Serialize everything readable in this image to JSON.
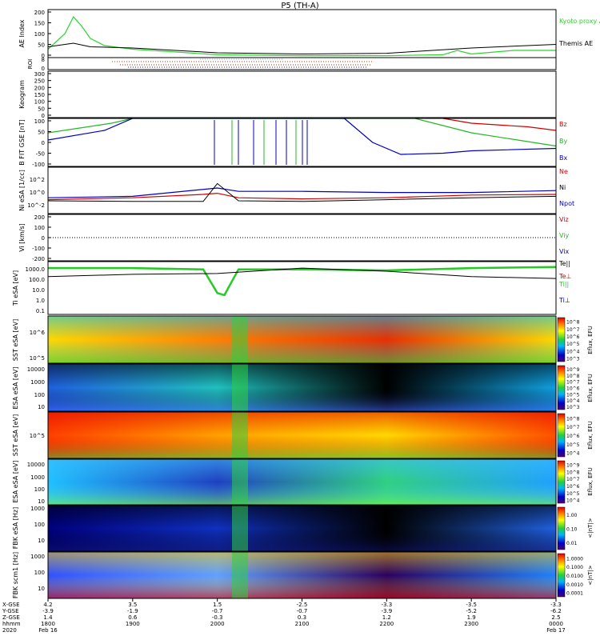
{
  "title": "P5 (TH-A)",
  "colors": {
    "kyoto": "#2fd32f",
    "themis": "#000000",
    "bz": "#d00000",
    "by": "#22b822",
    "bx": "#0000c0",
    "ne": "#d00000",
    "ni": "#0000c0",
    "npot": "#000000",
    "telc": "#000000",
    "tilc": "#22cc22"
  },
  "chart_data": [
    {
      "id": "ae",
      "type": "line",
      "ylabel": "AE Index",
      "ylim": [
        0,
        200
      ],
      "yticks": [
        "200",
        "150",
        "100",
        "50",
        "0"
      ],
      "series": [
        {
          "name": "Kyoto proxy AE",
          "x": [
            "1800",
            "1812",
            "1818",
            "1824",
            "1830",
            "1840",
            "1900",
            "2000",
            "2100",
            "2200",
            "2240",
            "2250",
            "2300",
            "2330",
            "2400"
          ],
          "y": [
            35,
            100,
            170,
            130,
            80,
            50,
            35,
            12,
            8,
            8,
            12,
            30,
            15,
            30,
            30
          ]
        },
        {
          "name": "Themis AE",
          "x": [
            "1800",
            "1818",
            "1830",
            "1900",
            "2000",
            "2100",
            "2200",
            "2300",
            "2400"
          ],
          "y": [
            45,
            60,
            45,
            40,
            20,
            15,
            18,
            40,
            55
          ]
        }
      ]
    },
    {
      "id": "roi",
      "type": "line",
      "ylabel": "ROI",
      "ytick_labels": [
        "8",
        "0"
      ]
    },
    {
      "id": "kesegram",
      "type": "line",
      "ylabel": "Keogram",
      "ylim": [
        0,
        300
      ],
      "yticks": [
        "300",
        "250",
        "200",
        "150",
        "100",
        "50",
        "0"
      ]
    },
    {
      "id": "bfit",
      "type": "line",
      "ylabel": "B FIT GSE [nT]",
      "ylim": [
        -100,
        100
      ],
      "yticks": [
        "100",
        "50",
        "0",
        "-50",
        "-100"
      ],
      "series": [
        {
          "name": "Bz",
          "x": [
            "2240",
            "2300",
            "2340",
            "2400"
          ],
          "y": [
            100,
            80,
            65,
            50
          ]
        },
        {
          "name": "By",
          "x": [
            "1800",
            "1845",
            "1900",
            "2220",
            "2300",
            "2400"
          ],
          "y": [
            40,
            80,
            100,
            100,
            40,
            -15
          ]
        },
        {
          "name": "Bx",
          "x": [
            "1800",
            "1840",
            "1900",
            "2130",
            "2150",
            "2210",
            "2240",
            "2300",
            "2400"
          ],
          "y": [
            10,
            50,
            100,
            100,
            0,
            -50,
            -45,
            -35,
            -25
          ]
        }
      ]
    },
    {
      "id": "ni",
      "type": "line",
      "ylabel": "Ni eSA [1/cc]",
      "yscale": "log",
      "ytick_labels": [
        "10^2",
        "10^0",
        "10^-2"
      ],
      "series": [
        {
          "name": "Ne",
          "x": [
            "1800",
            "1900",
            "1950",
            "2000",
            "2015",
            "2100",
            "2200",
            "2300",
            "2400"
          ],
          "y": [
            0.15,
            0.3,
            1,
            1.5,
            0.3,
            0.2,
            0.3,
            0.8,
            1
          ]
        },
        {
          "name": "Ni",
          "x": [
            "1800",
            "1900",
            "2000",
            "2015",
            "2100",
            "2200",
            "2300",
            "2400"
          ],
          "y": [
            0.3,
            0.5,
            10,
            3,
            3,
            2,
            2,
            4
          ]
        },
        {
          "name": "Npot",
          "x": [
            "1800",
            "1900",
            "1950",
            "2000",
            "2015",
            "2100",
            "2200",
            "2300",
            "2400"
          ],
          "y": [
            0.1,
            0.08,
            0.08,
            50,
            0.1,
            0.08,
            0.15,
            0.3,
            0.5
          ]
        }
      ]
    },
    {
      "id": "vi",
      "type": "line",
      "ylabel": "Vi [km/s]",
      "ylim": [
        -200,
        200
      ],
      "yticks": [
        "200",
        "100",
        "0",
        "-100",
        "-200"
      ],
      "series": [
        {
          "name": "Viz",
          "x": [],
          "y": []
        },
        {
          "name": "Viy",
          "x": [],
          "y": []
        },
        {
          "name": "Vix",
          "x": [],
          "y": []
        }
      ]
    },
    {
      "id": "ti",
      "type": "line",
      "ylabel": "Ti eSA [eV]",
      "yscale": "log",
      "ytick_labels": [
        "1000.0",
        "100.0",
        "10.0",
        "1.0",
        "0.1"
      ],
      "series": [
        {
          "name": "Te||",
          "x": [
            "1800",
            "1900",
            "2000",
            "2100",
            "2200",
            "2300",
            "2400"
          ],
          "y": [
            300,
            500,
            600,
            2000,
            1000,
            300,
            200
          ]
        },
        {
          "name": "Ti||",
          "x": [
            "1800",
            "1900",
            "1950",
            "2000",
            "2005",
            "2015",
            "2100",
            "2200",
            "2300",
            "2400"
          ],
          "y": [
            2000,
            2000,
            1500,
            8,
            5,
            1500,
            1500,
            1200,
            2000,
            2500
          ]
        }
      ]
    },
    {
      "id": "sst_i_e",
      "type": "heatmap",
      "ylabel": "SST eSA [eV]",
      "ytick_labels": [
        "10^6",
        "10^5"
      ],
      "colorbar_label": "Eflux, EFU",
      "colorbar_ticks": [
        "10^8",
        "10^7",
        "10^6",
        "10^5",
        "10^4",
        "10^3"
      ]
    },
    {
      "id": "esa_e",
      "type": "heatmap",
      "ylabel": "ESA eSA [eV]",
      "ytick_labels": [
        "10000",
        "1000",
        "100",
        "10"
      ],
      "colorbar_label": "Eflux, EFU",
      "colorbar_ticks": [
        "10^9",
        "10^8",
        "10^7",
        "10^6",
        "10^5",
        "10^4",
        "10^3"
      ]
    },
    {
      "id": "sst_i",
      "type": "heatmap",
      "ylabel": "SST eSA [eV]",
      "ytick_labels": [
        "10^5"
      ],
      "colorbar_label": "Eflux, EFU",
      "colorbar_ticks": [
        "10^8",
        "10^7",
        "10^6",
        "10^5",
        "10^4"
      ]
    },
    {
      "id": "esa_i",
      "type": "heatmap",
      "ylabel": "ESA eSA [eV]",
      "ytick_labels": [
        "10000",
        "1000",
        "100",
        "10"
      ],
      "colorbar_label": "Eflux, EFU",
      "colorbar_ticks": [
        "10^9",
        "10^8",
        "10^7",
        "10^6",
        "10^5",
        "10^4"
      ]
    },
    {
      "id": "fbk_e",
      "type": "heatmap",
      "ylabel": "FBK eSA [Hz]",
      "ytick_labels": [
        "1000",
        "100",
        "10"
      ],
      "colorbar_label": "<|nT|>",
      "colorbar_ticks": [
        "1.00",
        "0.10",
        "0.01"
      ]
    },
    {
      "id": "fbk_b",
      "type": "heatmap",
      "ylabel": "FBK scm1 [Hz]",
      "ytick_labels": [
        "1000",
        "100",
        "10"
      ],
      "colorbar_label": "<|nT|>",
      "colorbar_ticks": [
        "1.0000",
        "0.1000",
        "0.0100",
        "0.0010",
        "0.0001"
      ]
    }
  ],
  "side_labels": {
    "kyoto": "Kyoto proxy AE",
    "themis": "Themis AE",
    "bz": "Bz",
    "by": "By",
    "bx": "Bx",
    "ne": "Ne",
    "ni": "Ni",
    "npot": "Npot",
    "viz": "Viz",
    "viy": "Viy",
    "vix": "Vix",
    "tell": "Te||",
    "teperp": "Te⊥",
    "till": "Ti||",
    "tiperp": "Ti⊥"
  },
  "xaxis": {
    "row_labels": [
      "X-GSE",
      "Y-GSE",
      "Z-GSE",
      "hhmm",
      "2020"
    ],
    "ticks": [
      {
        "x": "4.2",
        "y": "-3.9",
        "z": "1.4",
        "hhmm": "1800",
        "date": "Feb 16"
      },
      {
        "x": "3.5",
        "y": "-1.9",
        "z": "0.6",
        "hhmm": "1900",
        "date": ""
      },
      {
        "x": "1.5",
        "y": "-0.7",
        "z": "-0.3",
        "hhmm": "2000",
        "date": ""
      },
      {
        "x": "-2.5",
        "y": "-0.7",
        "z": "0.3",
        "hhmm": "2100",
        "date": ""
      },
      {
        "x": "-3.3",
        "y": "-3.9",
        "z": "1.2",
        "hhmm": "2200",
        "date": ""
      },
      {
        "x": "-3.5",
        "y": "-5.2",
        "z": "1.9",
        "hhmm": "2300",
        "date": ""
      },
      {
        "x": "-3.3",
        "y": "-6.2",
        "z": "2.5",
        "hhmm": "0000",
        "date": "Feb 17"
      }
    ]
  }
}
